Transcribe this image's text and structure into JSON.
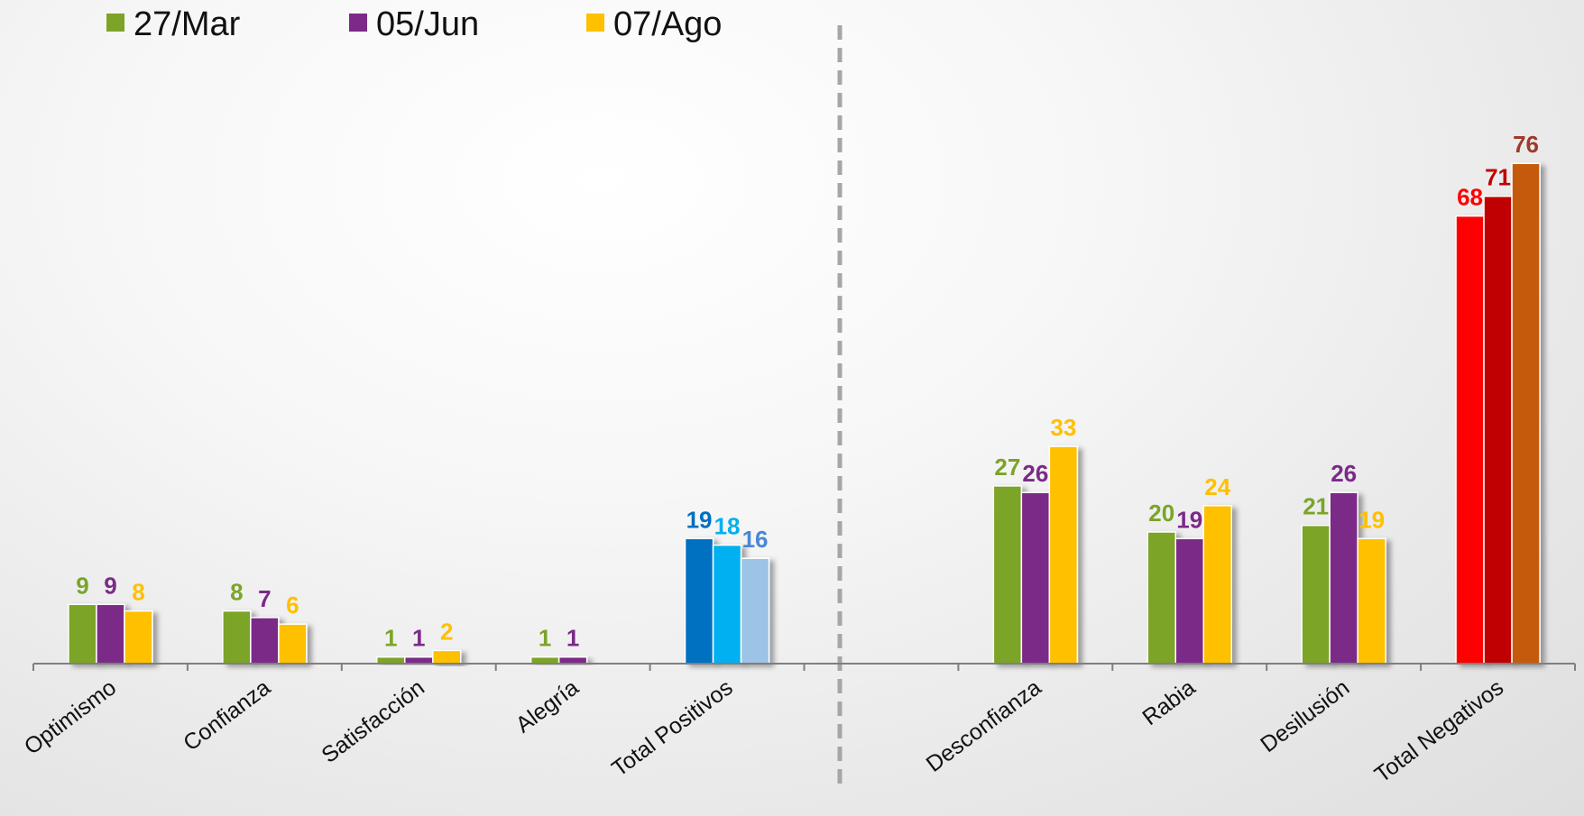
{
  "chart_data": {
    "type": "bar",
    "categories": [
      "Optimismo",
      "Confianza",
      "Satisfacción",
      "Alegría",
      "Total Positivos",
      "",
      "Desconfianza",
      "Rabia",
      "Desilusión",
      "Total Negativos"
    ],
    "series": [
      {
        "name": "27/Mar",
        "color": "#7ba428",
        "values": [
          9,
          8,
          1,
          1,
          19,
          null,
          27,
          20,
          21,
          68
        ]
      },
      {
        "name": "05/Jun",
        "color": "#7b2a88",
        "values": [
          9,
          7,
          1,
          1,
          18,
          null,
          26,
          19,
          26,
          71
        ]
      },
      {
        "name": "07/Ago",
        "color": "#ffc000",
        "values": [
          8,
          6,
          2,
          null,
          16,
          null,
          33,
          24,
          19,
          76
        ]
      }
    ],
    "special_colors": {
      "Total Positivos": [
        "#0070c0",
        "#00b0f0",
        "#9dc3e6"
      ],
      "Total Negativos": [
        "#ff0000",
        "#c00000",
        "#c55a11"
      ]
    },
    "special_label_colors": {
      "Total Positivos": [
        "#0070c0",
        "#00b0f0",
        "#4a86d8"
      ],
      "Total Negativos": [
        "#ff0000",
        "#c00000",
        "#9b3b2b"
      ]
    },
    "ylim": [
      0,
      90
    ],
    "grid": false,
    "legend_position": "top-left",
    "divider": "dashed vertical line between positive and negative groups"
  }
}
